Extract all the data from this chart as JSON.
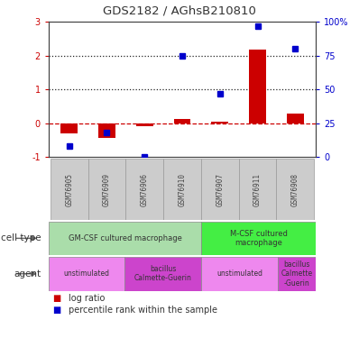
{
  "title": "GDS2182 / AGhsB210810",
  "samples": [
    "GSM76905",
    "GSM76909",
    "GSM76906",
    "GSM76910",
    "GSM76907",
    "GSM76911",
    "GSM76908"
  ],
  "log_ratio": [
    -0.3,
    -0.42,
    -0.07,
    0.12,
    0.05,
    2.18,
    0.28
  ],
  "percentile_rank": [
    8,
    18,
    0,
    75,
    47,
    97,
    80
  ],
  "ylim_left": [
    -1,
    3
  ],
  "ylim_right": [
    0,
    100
  ],
  "yticks_left": [
    -1,
    0,
    1,
    2,
    3
  ],
  "ytick_labels_left": [
    "-1",
    "0",
    "1",
    "2",
    "3"
  ],
  "yticks_right": [
    0,
    25,
    50,
    75,
    100
  ],
  "ytick_labels_right": [
    "0",
    "25",
    "50",
    "75",
    "100%"
  ],
  "bar_color": "#cc0000",
  "dot_color": "#0000cc",
  "zero_line_color": "#cc0000",
  "dotted_line_color": "#222222",
  "cell_type_group1_color": "#aaddaa",
  "cell_type_group2_color": "#44ee44",
  "agent_unstim_color": "#ee88ee",
  "agent_bcg_color": "#cc44cc",
  "sample_label_bg": "#cccccc",
  "bg_color": "#ffffff",
  "tick_label_color_left": "#cc0000",
  "tick_label_color_right": "#0000cc",
  "left_label_color": "#333333"
}
